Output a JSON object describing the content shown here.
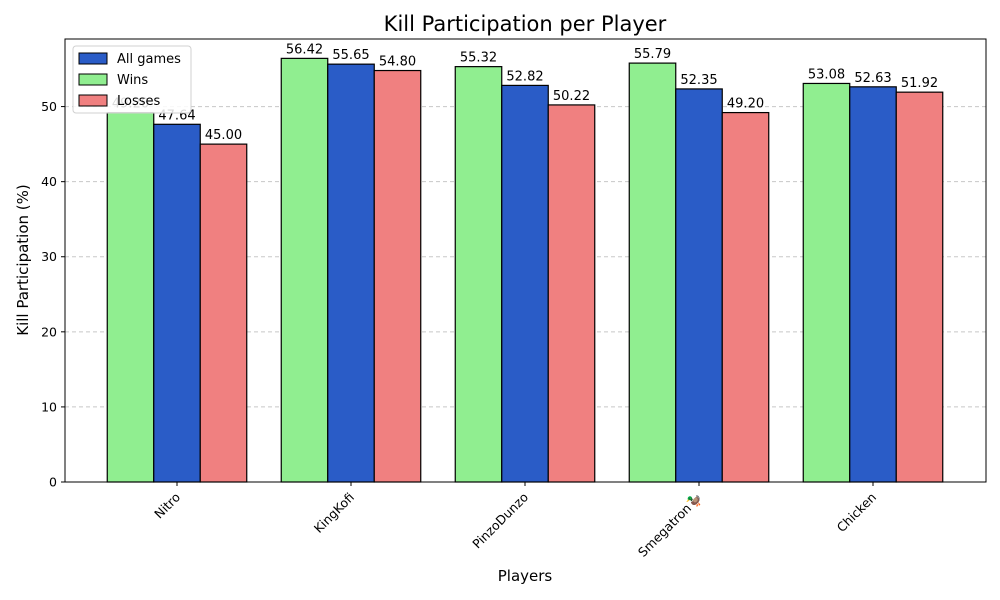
{
  "chart_data": {
    "type": "bar",
    "title": "Kill Participation per Player",
    "xlabel": "Players",
    "ylabel": "Kill Participation (%)",
    "categories": [
      "Nitro",
      "KingKofi",
      "PinzoDunzo",
      "Smegatron🦆",
      "Chicken"
    ],
    "ylim": [
      0,
      59
    ],
    "yticks": [
      0,
      10,
      20,
      30,
      40,
      50
    ],
    "grid": "y-dashed",
    "legend_position": "top-left",
    "legend_entries": [
      "All games",
      "Wins",
      "Losses"
    ],
    "bar_order": [
      "Wins",
      "All games",
      "Losses"
    ],
    "series": [
      {
        "name": "All games",
        "color": "#2a5cc7",
        "values": [
          47.64,
          55.65,
          52.82,
          52.35,
          52.63
        ],
        "labels": [
          "47.64",
          "55.65",
          "52.82",
          "52.35",
          "52.63"
        ]
      },
      {
        "name": "Wins",
        "color": "#90ee90",
        "values": [
          49.2,
          56.42,
          55.32,
          55.79,
          53.08
        ],
        "labels": [
          "49.20",
          "56.42",
          "55.32",
          "55.79",
          "53.08"
        ]
      },
      {
        "name": "Losses",
        "color": "#f08080",
        "values": [
          45.0,
          54.8,
          50.22,
          49.2,
          51.92
        ],
        "labels": [
          "45.00",
          "54.80",
          "50.22",
          "49.20",
          "51.92"
        ]
      }
    ]
  }
}
